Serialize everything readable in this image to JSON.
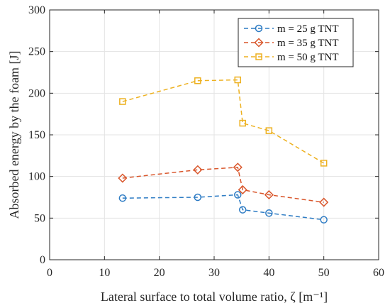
{
  "chart_data": {
    "type": "line",
    "xlabel": "Lateral surface to total volume ratio, ζ [m⁻¹]",
    "ylabel": "Absorbed energy by the foam [J]",
    "xlim": [
      0,
      60
    ],
    "ylim": [
      0,
      300
    ],
    "xticks": [
      0,
      10,
      20,
      30,
      40,
      50,
      60
    ],
    "yticks": [
      0,
      50,
      100,
      150,
      200,
      250,
      300
    ],
    "xtick_labels": [
      "0",
      "10",
      "20",
      "30",
      "40",
      "50",
      "60"
    ],
    "ytick_labels": [
      "0",
      "50",
      "100",
      "150",
      "200",
      "250",
      "300"
    ],
    "grid": true,
    "legend_position": "top-right",
    "series": [
      {
        "name": "m = 25 g TNT",
        "color": "#2e7cc4",
        "marker": "circle",
        "points": [
          {
            "x": 13.3,
            "y": 74
          },
          {
            "x": 27,
            "y": 75
          },
          {
            "x": 34.3,
            "y": 78
          },
          {
            "x": 35.2,
            "y": 60
          },
          {
            "x": 40,
            "y": 56
          },
          {
            "x": 50,
            "y": 48
          }
        ]
      },
      {
        "name": "m = 35 g TNT",
        "color": "#d9562b",
        "marker": "diamond",
        "points": [
          {
            "x": 13.3,
            "y": 98
          },
          {
            "x": 27,
            "y": 108
          },
          {
            "x": 34.3,
            "y": 111
          },
          {
            "x": 35.2,
            "y": 84
          },
          {
            "x": 40,
            "y": 78
          },
          {
            "x": 50,
            "y": 69
          }
        ]
      },
      {
        "name": "m = 50 g TNT",
        "color": "#edb120",
        "marker": "square",
        "points": [
          {
            "x": 13.3,
            "y": 190
          },
          {
            "x": 27,
            "y": 215
          },
          {
            "x": 34.3,
            "y": 216
          },
          {
            "x": 35.2,
            "y": 164
          },
          {
            "x": 40,
            "y": 155
          },
          {
            "x": 50,
            "y": 116
          }
        ]
      }
    ]
  }
}
